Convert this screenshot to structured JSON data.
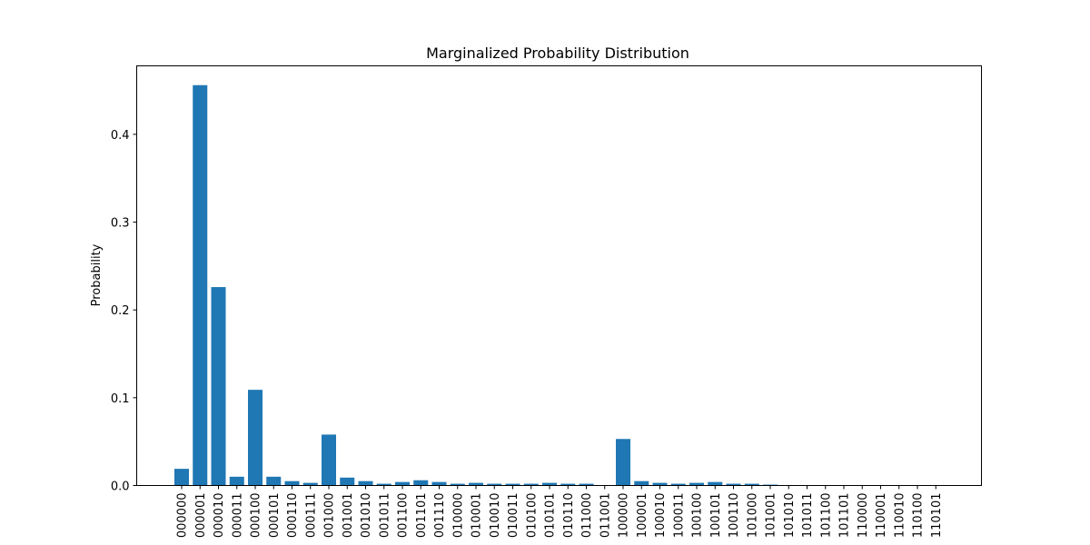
{
  "chart_data": {
    "type": "bar",
    "title": "Marginalized Probability Distribution",
    "xlabel": "",
    "ylabel": "Probability",
    "ylim": [
      0,
      0.478
    ],
    "yticks": [
      0.0,
      0.1,
      0.2,
      0.3,
      0.4
    ],
    "ytick_labels": [
      "0.0",
      "0.1",
      "0.2",
      "0.3",
      "0.4"
    ],
    "color": "#1f77b4",
    "grid": false,
    "categories": [
      "000000",
      "000001",
      "000010",
      "000011",
      "000100",
      "000101",
      "000110",
      "000111",
      "001000",
      "001001",
      "001010",
      "001011",
      "001100",
      "001101",
      "001110",
      "010000",
      "010001",
      "010010",
      "010011",
      "010100",
      "010101",
      "010110",
      "011000",
      "011001",
      "100000",
      "100001",
      "100010",
      "100011",
      "100100",
      "100101",
      "100110",
      "101000",
      "101001",
      "101010",
      "101011",
      "101100",
      "101101",
      "110000",
      "110001",
      "110010",
      "110100",
      "110101"
    ],
    "values": [
      0.019,
      0.456,
      0.226,
      0.01,
      0.109,
      0.01,
      0.005,
      0.003,
      0.058,
      0.009,
      0.005,
      0.002,
      0.004,
      0.006,
      0.004,
      0.002,
      0.003,
      0.002,
      0.002,
      0.002,
      0.003,
      0.002,
      0.002,
      0.0005,
      0.053,
      0.005,
      0.003,
      0.002,
      0.003,
      0.004,
      0.002,
      0.002,
      0.001,
      0.0005,
      0.0005,
      0.0005,
      0.0005,
      0.0005,
      0.0005,
      0.0005,
      0.0005,
      0.0005
    ]
  }
}
